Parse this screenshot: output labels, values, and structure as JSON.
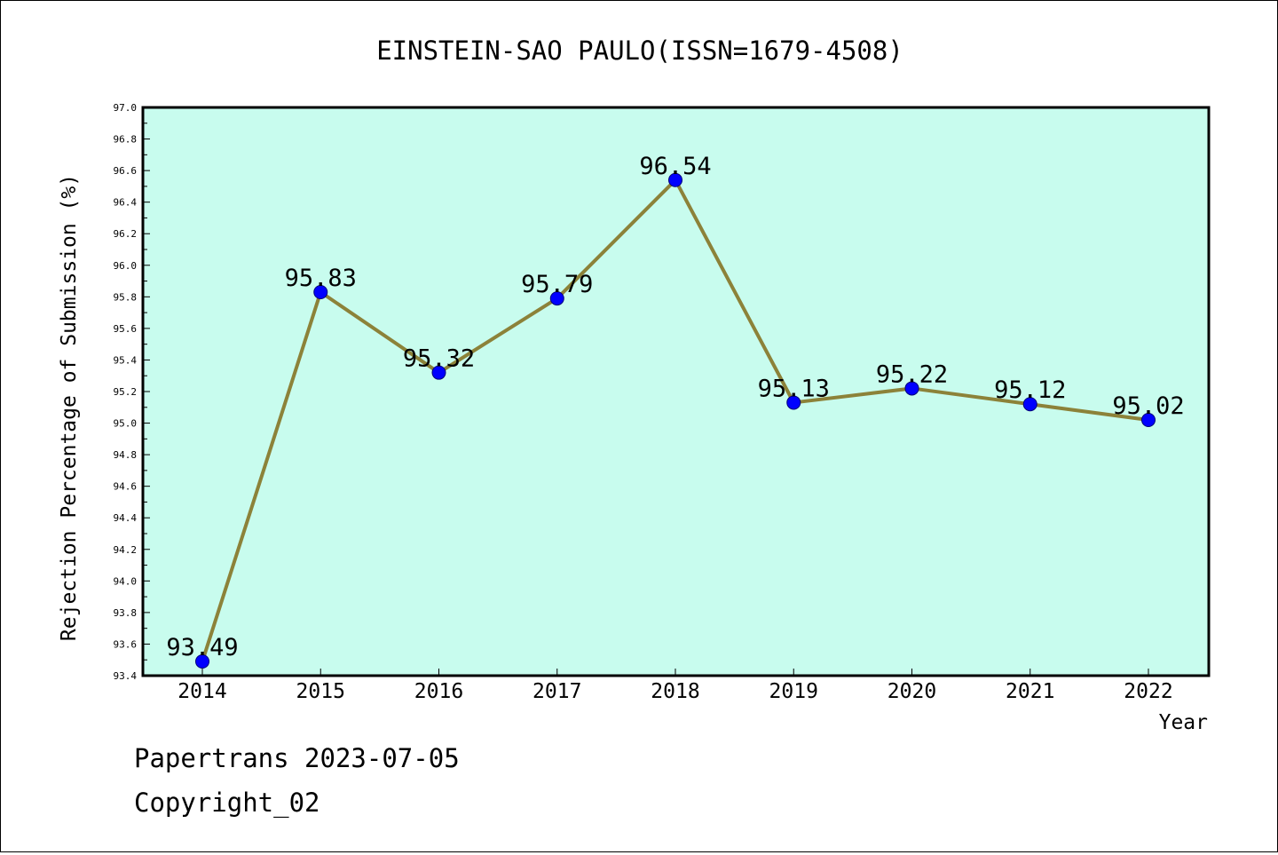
{
  "chart_data": {
    "type": "line",
    "title": "EINSTEIN-SAO PAULO(ISSN=1679-4508)",
    "xlabel": "Year",
    "ylabel": "Rejection Percentage of Submission (%)",
    "categories": [
      "2014",
      "2015",
      "2016",
      "2017",
      "2018",
      "2019",
      "2020",
      "2021",
      "2022"
    ],
    "values": [
      93.49,
      95.83,
      95.32,
      95.79,
      96.54,
      95.13,
      95.22,
      95.12,
      95.02
    ],
    "data_labels": [
      "93.49",
      "95.83",
      "95.32",
      "95.79",
      "96.54",
      "95.13",
      "95.22",
      "95.12",
      "95.02"
    ],
    "ylim": [
      93.4,
      97.0
    ],
    "y_ticks": [
      "93.4",
      "93.6",
      "93.8",
      "94.0",
      "94.2",
      "94.4",
      "94.6",
      "94.8",
      "95.0",
      "95.2",
      "95.4",
      "95.6",
      "95.8",
      "96.0",
      "96.2",
      "96.4",
      "96.6",
      "96.8",
      "97.0"
    ],
    "grid": false,
    "legend": "none",
    "colors": {
      "plot_background": "#c8fcee",
      "line": "#8c8239",
      "marker": "#0000ff",
      "marker_edge": "#00007a"
    }
  },
  "footer": {
    "line1": "Papertrans 2023-07-05",
    "line2": "Copyright_02"
  }
}
